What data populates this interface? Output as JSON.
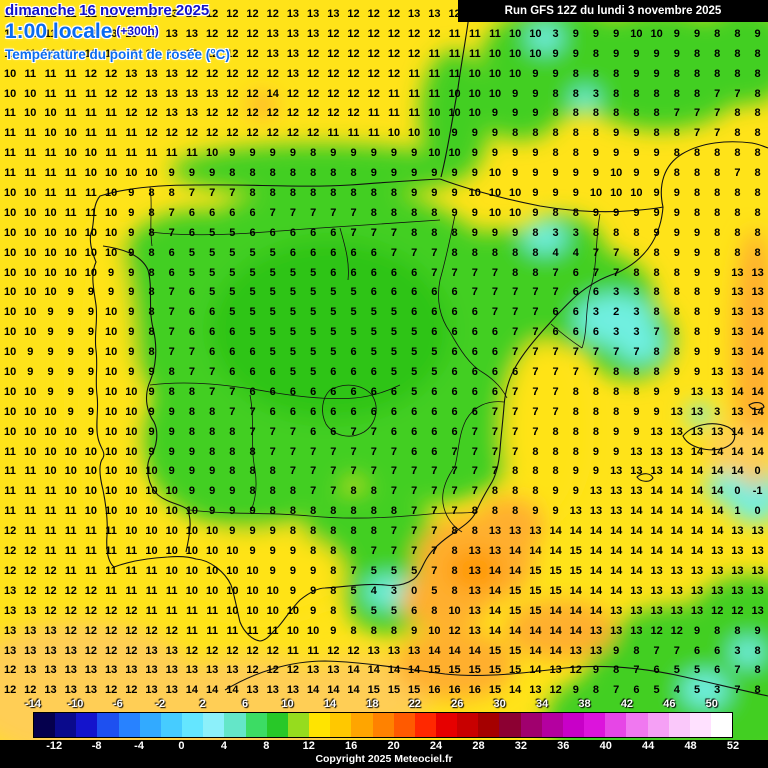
{
  "header": {
    "date_line": "dimanche 16 novembre 2025",
    "time_line": "1:00 locale",
    "forecast_offset": "(+300h)",
    "variable_label": "Température du point de rosée (°C)"
  },
  "run_info": {
    "label": "Run GFS 12Z du lundi 3 novembre 2025"
  },
  "footer": {
    "copyright": "Copyright 2025 Meteociel.fr"
  },
  "colors": {
    "yellow": "#FFE319",
    "green": "#43CF21",
    "green2": "#2EC414",
    "cyan": "#6FEFE0",
    "orange": "#FFAF2E",
    "orange_deep": "#FF9A00",
    "orange_light": "#FFCE54",
    "land_stroke": "#111111",
    "header_blue": "#1212CC",
    "header_azure": "#0A6CF0",
    "run_bg": "#000000",
    "run_fg": "#FFFFFF"
  },
  "scale": {
    "unit": "°C",
    "top_labels": [
      -14,
      -10,
      -6,
      -2,
      2,
      6,
      10,
      14,
      18,
      22,
      26,
      30,
      34,
      38,
      42,
      46,
      50
    ],
    "bottom_labels": [
      -12,
      -8,
      -4,
      0,
      4,
      8,
      12,
      16,
      20,
      24,
      28,
      32,
      36,
      40,
      44,
      48,
      52
    ],
    "colors": [
      "#05004D",
      "#0A0A8C",
      "#1414CC",
      "#1E50F0",
      "#2882FF",
      "#32AAFF",
      "#46CCFF",
      "#64E6FF",
      "#8CF0FA",
      "#64E6C8",
      "#3CDC64",
      "#28C828",
      "#96DC1E",
      "#FFE400",
      "#FFC800",
      "#FFA500",
      "#FF8200",
      "#FF5A00",
      "#FF2800",
      "#E60000",
      "#C80000",
      "#A50000",
      "#8C0032",
      "#A0006E",
      "#B400A0",
      "#C800C8",
      "#DC14DC",
      "#E646E6",
      "#F078F0",
      "#F5A0F5",
      "#FAC8FA",
      "#FFE1FF",
      "#FFFFFF"
    ]
  },
  "map_grid": {
    "rows": [
      [
        10,
        11,
        11,
        11,
        12,
        12,
        13,
        13,
        13,
        13,
        12,
        12,
        12,
        12,
        13,
        13,
        13,
        12,
        12,
        12,
        13,
        13,
        12,
        11,
        11,
        11,
        10,
        10,
        10,
        9,
        10,
        10,
        10,
        8,
        9,
        9,
        8,
        9
      ],
      [
        11,
        11,
        11,
        12,
        12,
        13,
        13,
        13,
        13,
        13,
        12,
        12,
        12,
        13,
        13,
        13,
        12,
        12,
        12,
        12,
        12,
        12,
        11,
        11,
        11,
        10,
        10,
        3,
        9,
        9,
        9,
        10,
        10,
        9,
        9,
        8,
        8,
        9
      ],
      [
        11,
        11,
        11,
        12,
        12,
        13,
        13,
        13,
        13,
        12,
        12,
        12,
        12,
        13,
        13,
        12,
        12,
        12,
        12,
        12,
        12,
        11,
        11,
        11,
        10,
        10,
        10,
        9,
        9,
        8,
        9,
        9,
        9,
        9,
        8,
        8,
        8,
        8
      ],
      [
        10,
        11,
        11,
        11,
        12,
        12,
        13,
        13,
        13,
        12,
        12,
        12,
        12,
        12,
        13,
        12,
        12,
        12,
        12,
        12,
        11,
        11,
        11,
        10,
        10,
        10,
        9,
        9,
        8,
        8,
        8,
        9,
        9,
        8,
        8,
        8,
        8,
        8
      ],
      [
        10,
        10,
        11,
        11,
        11,
        12,
        12,
        13,
        13,
        13,
        13,
        12,
        12,
        14,
        12,
        12,
        12,
        12,
        12,
        11,
        11,
        11,
        10,
        10,
        10,
        9,
        9,
        8,
        8,
        3,
        8,
        8,
        8,
        8,
        8,
        7,
        7,
        8
      ],
      [
        11,
        10,
        10,
        11,
        11,
        11,
        12,
        12,
        13,
        13,
        12,
        12,
        12,
        12,
        12,
        12,
        12,
        12,
        11,
        11,
        11,
        10,
        10,
        10,
        9,
        9,
        9,
        8,
        8,
        8,
        8,
        8,
        8,
        7,
        7,
        7,
        8,
        8
      ],
      [
        11,
        11,
        10,
        10,
        11,
        11,
        11,
        12,
        12,
        12,
        12,
        12,
        12,
        12,
        12,
        12,
        11,
        11,
        11,
        10,
        10,
        10,
        9,
        9,
        9,
        8,
        8,
        8,
        8,
        8,
        9,
        9,
        8,
        8,
        7,
        7,
        8,
        8
      ],
      [
        11,
        11,
        11,
        10,
        10,
        11,
        11,
        11,
        11,
        11,
        10,
        9,
        9,
        9,
        9,
        8,
        9,
        9,
        9,
        9,
        9,
        10,
        10,
        9,
        9,
        9,
        9,
        8,
        8,
        9,
        9,
        9,
        9,
        8,
        8,
        8,
        8,
        8
      ],
      [
        11,
        11,
        11,
        11,
        10,
        10,
        10,
        10,
        9,
        9,
        9,
        8,
        8,
        8,
        8,
        8,
        8,
        8,
        9,
        9,
        9,
        9,
        9,
        9,
        10,
        9,
        9,
        9,
        9,
        9,
        10,
        9,
        9,
        8,
        8,
        8,
        7,
        8
      ],
      [
        10,
        10,
        11,
        11,
        11,
        10,
        9,
        8,
        8,
        7,
        7,
        7,
        8,
        8,
        8,
        8,
        8,
        8,
        8,
        8,
        9,
        9,
        9,
        10,
        10,
        10,
        9,
        9,
        9,
        10,
        10,
        10,
        9,
        9,
        8,
        8,
        8,
        8
      ],
      [
        10,
        10,
        10,
        11,
        11,
        10,
        9,
        8,
        7,
        6,
        6,
        6,
        6,
        7,
        7,
        7,
        7,
        7,
        8,
        8,
        8,
        8,
        9,
        9,
        10,
        10,
        9,
        8,
        8,
        9,
        9,
        9,
        9,
        9,
        8,
        8,
        8,
        8
      ],
      [
        10,
        10,
        10,
        10,
        10,
        10,
        9,
        8,
        7,
        6,
        5,
        5,
        6,
        6,
        6,
        6,
        6,
        7,
        7,
        7,
        8,
        8,
        8,
        9,
        9,
        9,
        8,
        3,
        3,
        8,
        8,
        8,
        9,
        9,
        9,
        8,
        8,
        8
      ],
      [
        10,
        10,
        10,
        10,
        10,
        10,
        9,
        8,
        6,
        5,
        5,
        5,
        5,
        5,
        6,
        6,
        6,
        6,
        6,
        7,
        7,
        7,
        8,
        8,
        8,
        8,
        8,
        4,
        4,
        7,
        7,
        8,
        8,
        9,
        9,
        8,
        8,
        8
      ],
      [
        10,
        10,
        10,
        10,
        10,
        9,
        9,
        8,
        6,
        5,
        5,
        5,
        5,
        5,
        5,
        5,
        6,
        6,
        6,
        6,
        6,
        7,
        7,
        7,
        7,
        8,
        8,
        7,
        6,
        7,
        7,
        8,
        8,
        8,
        9,
        9,
        13,
        13
      ],
      [
        10,
        10,
        10,
        9,
        9,
        9,
        9,
        8,
        7,
        6,
        5,
        5,
        5,
        5,
        5,
        5,
        5,
        5,
        6,
        6,
        6,
        6,
        6,
        7,
        7,
        7,
        7,
        7,
        6,
        6,
        3,
        3,
        8,
        8,
        8,
        9,
        13,
        13
      ],
      [
        10,
        10,
        9,
        9,
        9,
        10,
        9,
        8,
        7,
        6,
        6,
        5,
        5,
        5,
        5,
        5,
        5,
        5,
        5,
        5,
        6,
        6,
        6,
        6,
        7,
        7,
        7,
        6,
        6,
        3,
        2,
        3,
        8,
        8,
        8,
        9,
        13,
        13
      ],
      [
        10,
        10,
        9,
        9,
        9,
        10,
        9,
        8,
        7,
        6,
        6,
        6,
        5,
        5,
        5,
        5,
        5,
        5,
        5,
        5,
        5,
        6,
        6,
        6,
        6,
        7,
        7,
        6,
        6,
        6,
        3,
        3,
        7,
        8,
        8,
        9,
        13,
        14
      ],
      [
        10,
        9,
        9,
        9,
        9,
        10,
        9,
        8,
        7,
        7,
        6,
        6,
        6,
        5,
        5,
        5,
        5,
        6,
        5,
        5,
        5,
        5,
        6,
        6,
        6,
        7,
        7,
        7,
        7,
        7,
        7,
        7,
        8,
        8,
        9,
        9,
        13,
        14
      ],
      [
        10,
        9,
        9,
        9,
        9,
        10,
        9,
        9,
        8,
        7,
        7,
        6,
        6,
        6,
        5,
        5,
        6,
        6,
        6,
        5,
        5,
        5,
        6,
        6,
        6,
        6,
        7,
        7,
        7,
        7,
        8,
        8,
        8,
        9,
        9,
        13,
        13,
        14
      ],
      [
        10,
        10,
        9,
        9,
        9,
        10,
        10,
        9,
        8,
        8,
        7,
        7,
        6,
        6,
        6,
        6,
        6,
        6,
        6,
        6,
        5,
        6,
        6,
        6,
        6,
        7,
        7,
        7,
        8,
        8,
        8,
        8,
        9,
        9,
        13,
        13,
        14,
        14
      ],
      [
        10,
        10,
        10,
        9,
        9,
        10,
        10,
        9,
        9,
        8,
        8,
        7,
        7,
        6,
        6,
        6,
        6,
        6,
        6,
        6,
        6,
        6,
        6,
        6,
        7,
        7,
        7,
        7,
        8,
        8,
        8,
        9,
        9,
        13,
        13,
        3,
        13,
        14
      ],
      [
        10,
        10,
        10,
        10,
        9,
        10,
        10,
        9,
        9,
        8,
        8,
        8,
        7,
        7,
        7,
        6,
        6,
        7,
        7,
        6,
        6,
        6,
        6,
        7,
        7,
        7,
        7,
        8,
        8,
        8,
        9,
        9,
        13,
        13,
        13,
        13,
        14,
        14
      ],
      [
        11,
        10,
        10,
        10,
        10,
        10,
        10,
        9,
        9,
        9,
        8,
        8,
        8,
        7,
        7,
        7,
        7,
        7,
        7,
        7,
        6,
        6,
        7,
        7,
        7,
        7,
        8,
        8,
        8,
        9,
        9,
        13,
        13,
        13,
        14,
        14,
        14,
        14
      ],
      [
        11,
        11,
        10,
        10,
        10,
        10,
        10,
        10,
        9,
        9,
        9,
        8,
        8,
        8,
        7,
        7,
        7,
        7,
        7,
        7,
        7,
        7,
        7,
        7,
        7,
        8,
        8,
        8,
        9,
        9,
        13,
        13,
        13,
        14,
        14,
        14,
        14,
        0
      ],
      [
        11,
        11,
        11,
        10,
        10,
        10,
        10,
        10,
        10,
        9,
        9,
        9,
        8,
        8,
        8,
        7,
        7,
        8,
        8,
        7,
        7,
        7,
        7,
        7,
        8,
        8,
        8,
        9,
        9,
        13,
        13,
        13,
        14,
        14,
        14,
        14,
        0,
        -1
      ],
      [
        11,
        11,
        11,
        11,
        10,
        10,
        10,
        10,
        10,
        10,
        9,
        9,
        9,
        8,
        8,
        8,
        8,
        8,
        8,
        8,
        7,
        7,
        7,
        8,
        8,
        8,
        9,
        9,
        13,
        13,
        13,
        14,
        14,
        14,
        14,
        14,
        1,
        0
      ],
      [
        12,
        11,
        11,
        11,
        11,
        11,
        10,
        10,
        10,
        10,
        10,
        9,
        9,
        9,
        8,
        8,
        8,
        8,
        8,
        7,
        7,
        7,
        8,
        8,
        13,
        13,
        13,
        14,
        14,
        14,
        14,
        14,
        14,
        14,
        14,
        14,
        13,
        13
      ],
      [
        12,
        12,
        11,
        11,
        11,
        11,
        11,
        10,
        10,
        10,
        10,
        10,
        9,
        9,
        9,
        8,
        8,
        8,
        7,
        7,
        7,
        7,
        8,
        13,
        13,
        14,
        14,
        14,
        15,
        14,
        14,
        14,
        14,
        14,
        14,
        13,
        13,
        13
      ],
      [
        12,
        12,
        12,
        11,
        11,
        11,
        11,
        11,
        10,
        10,
        10,
        10,
        10,
        9,
        9,
        9,
        8,
        7,
        5,
        5,
        5,
        7,
        8,
        13,
        14,
        14,
        15,
        15,
        15,
        14,
        14,
        14,
        13,
        13,
        13,
        13,
        13,
        13
      ],
      [
        13,
        12,
        12,
        12,
        12,
        11,
        11,
        11,
        11,
        10,
        10,
        10,
        10,
        10,
        9,
        9,
        8,
        5,
        4,
        3,
        0,
        5,
        8,
        13,
        14,
        15,
        15,
        15,
        14,
        14,
        14,
        13,
        13,
        13,
        13,
        13,
        13,
        13
      ],
      [
        13,
        13,
        12,
        12,
        12,
        12,
        12,
        11,
        11,
        11,
        11,
        10,
        10,
        10,
        10,
        9,
        8,
        5,
        5,
        5,
        6,
        8,
        10,
        13,
        14,
        15,
        15,
        14,
        14,
        14,
        13,
        13,
        13,
        13,
        13,
        12,
        12,
        13
      ],
      [
        13,
        13,
        13,
        12,
        12,
        12,
        12,
        12,
        12,
        11,
        11,
        11,
        11,
        11,
        10,
        10,
        9,
        8,
        8,
        8,
        9,
        10,
        12,
        13,
        14,
        14,
        14,
        14,
        14,
        13,
        13,
        13,
        12,
        12,
        9,
        8,
        8,
        9
      ],
      [
        13,
        13,
        13,
        13,
        12,
        12,
        12,
        13,
        13,
        12,
        12,
        12,
        12,
        12,
        11,
        11,
        12,
        12,
        13,
        13,
        13,
        14,
        14,
        14,
        15,
        15,
        14,
        14,
        13,
        13,
        9,
        8,
        7,
        7,
        6,
        6,
        3,
        8
      ],
      [
        12,
        13,
        13,
        13,
        13,
        13,
        13,
        13,
        13,
        13,
        13,
        13,
        12,
        12,
        12,
        13,
        13,
        14,
        14,
        14,
        14,
        15,
        15,
        15,
        15,
        15,
        14,
        13,
        12,
        9,
        8,
        7,
        6,
        5,
        5,
        6,
        7,
        8
      ],
      [
        12,
        12,
        13,
        13,
        13,
        12,
        12,
        13,
        13,
        14,
        14,
        14,
        13,
        13,
        13,
        14,
        14,
        14,
        15,
        15,
        15,
        16,
        16,
        16,
        15,
        14,
        13,
        12,
        9,
        8,
        7,
        6,
        5,
        4,
        5,
        3,
        7,
        8
      ]
    ]
  }
}
